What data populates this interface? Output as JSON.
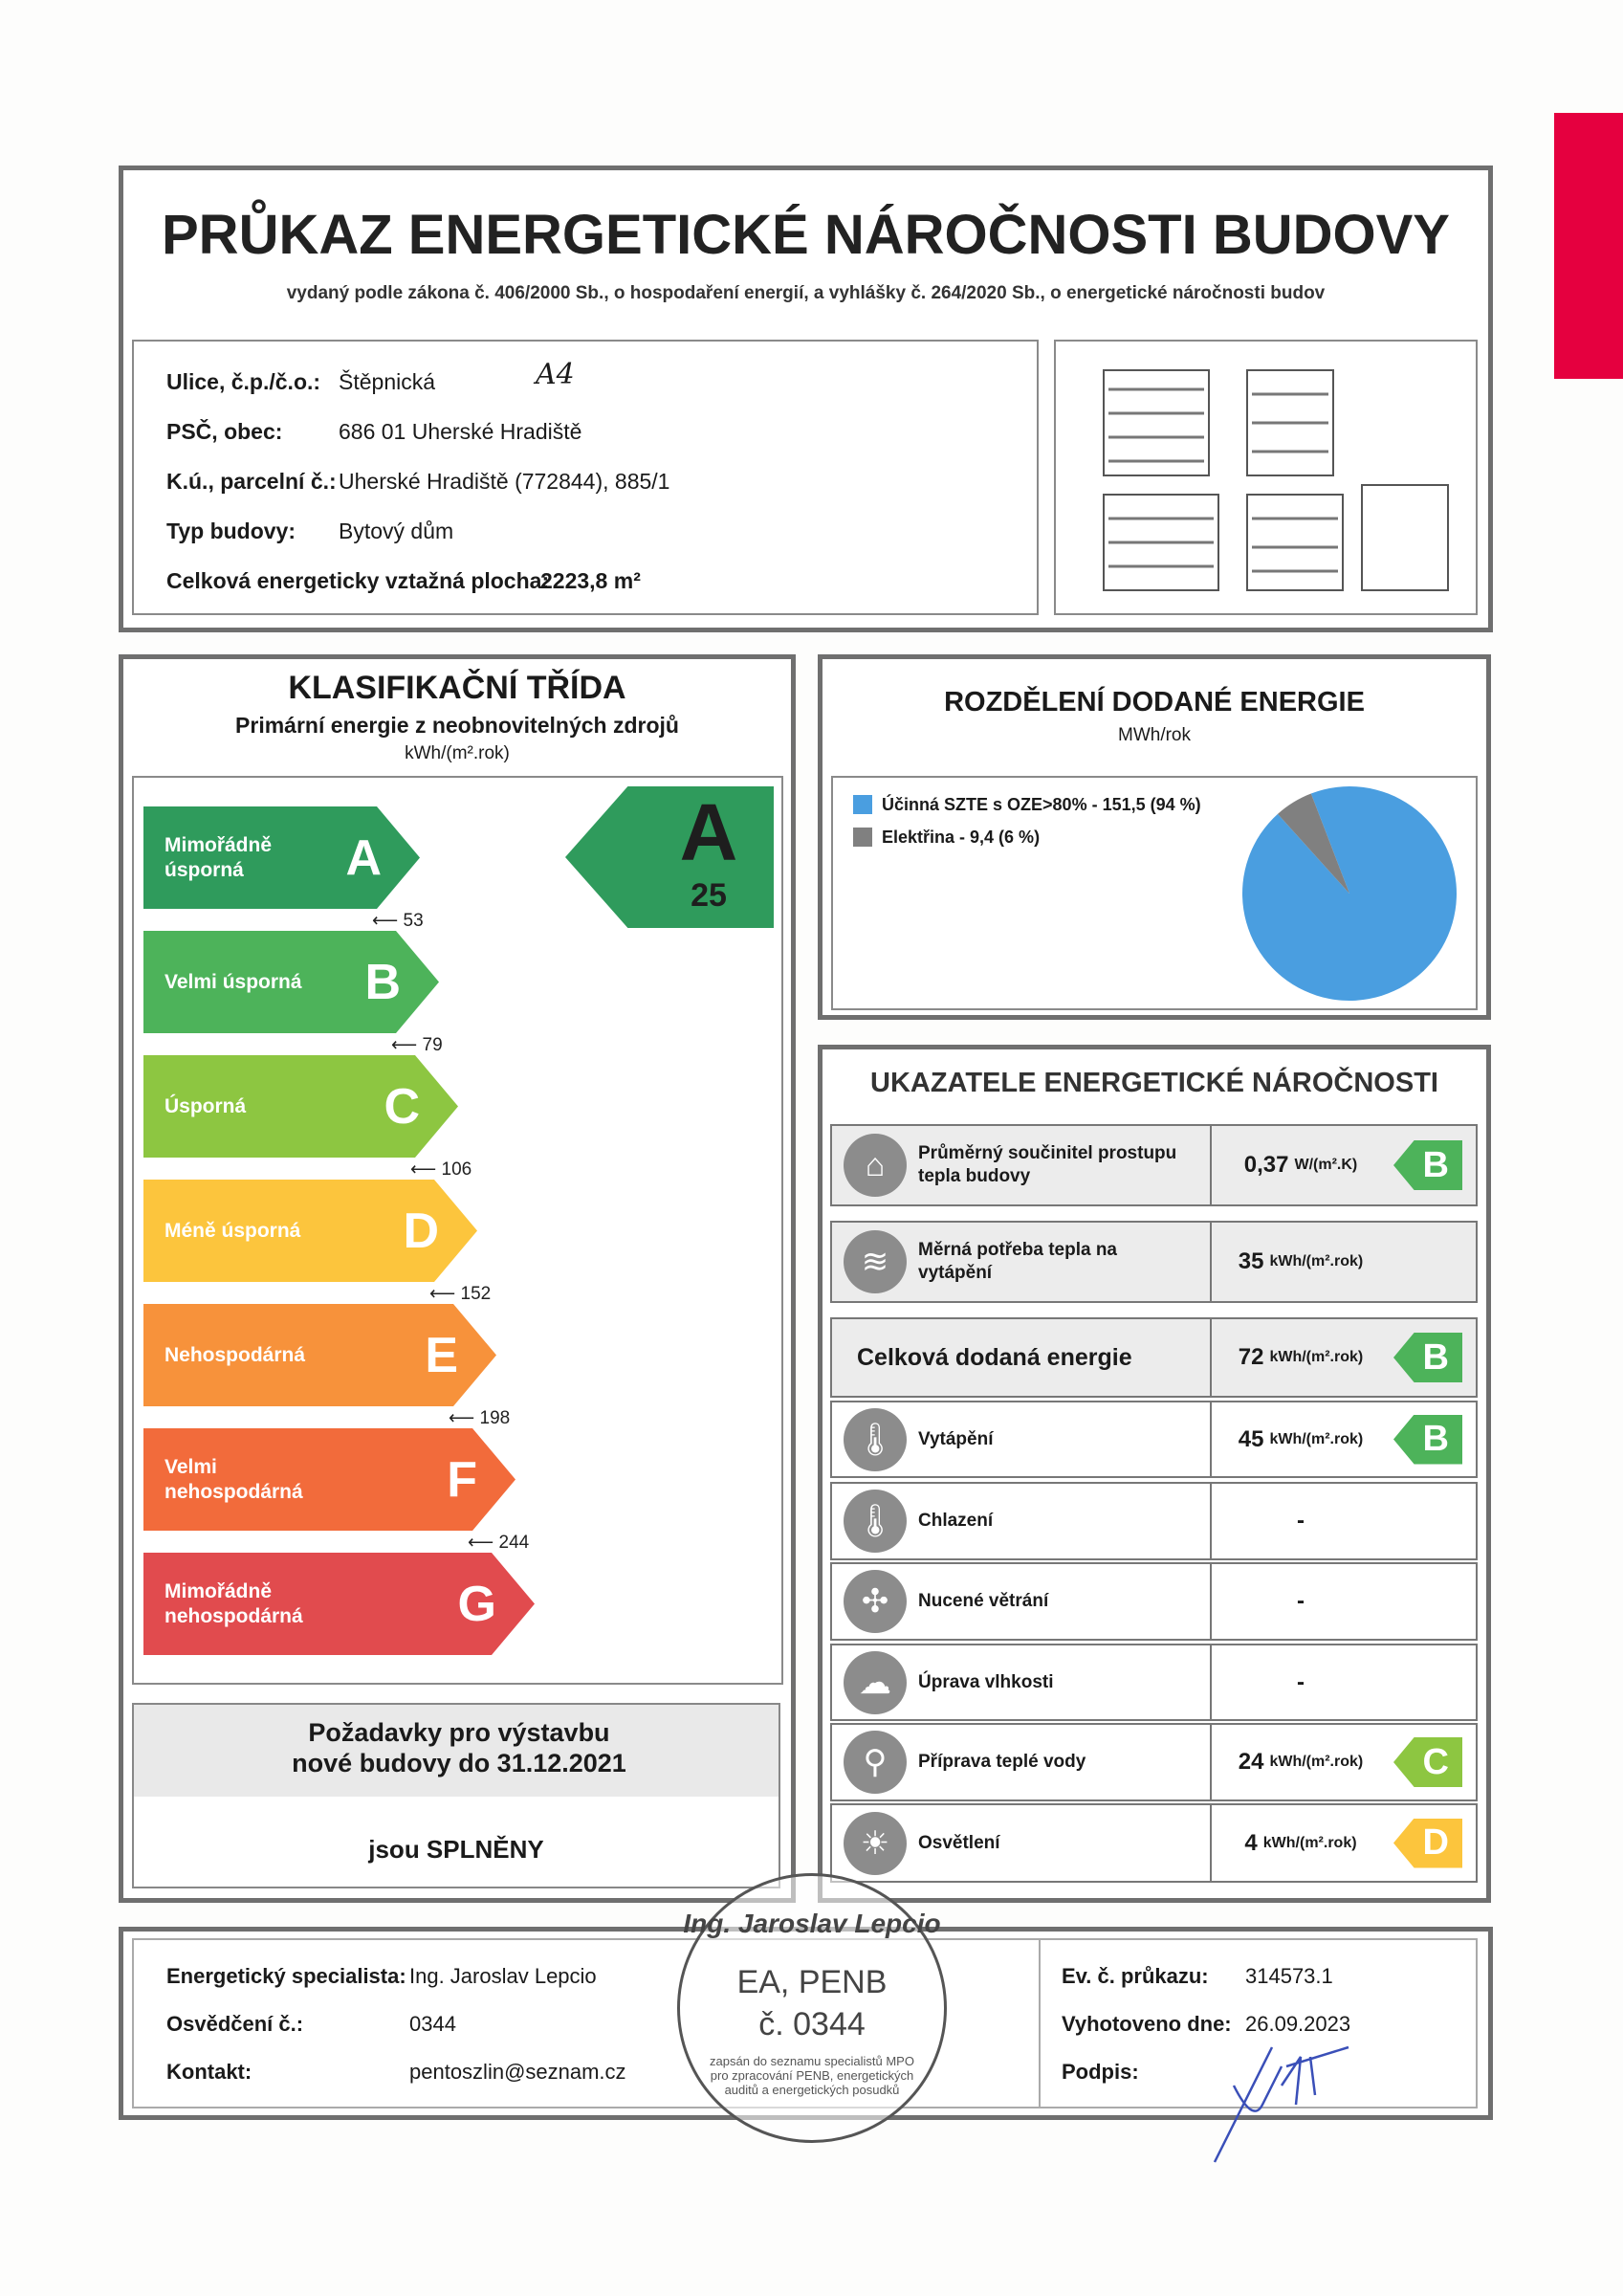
{
  "header": {
    "title": "PRŮKAZ ENERGETICKÉ NÁROČNOSTI BUDOVY",
    "subtitle": "vydaný podle zákona č. 406/2000 Sb., o hospodaření energií, a vyhlášky č. 264/2020 Sb., o energetické náročnosti budov"
  },
  "building": {
    "street_label": "Ulice, č.p./č.o.:",
    "street": "Štěpnická",
    "handwritten_note": "A4",
    "zip_label": "PSČ, obec:",
    "zip": "686 01 Uherské Hradiště",
    "cadastre_label": "K.ú., parcelní č.:",
    "cadastre": "Uherské Hradiště (772844), 885/1",
    "type_label": "Typ budovy:",
    "type": "Bytový dům",
    "area_label": "Celková energeticky vztažná plocha:",
    "area": "2223,8 m²"
  },
  "classification": {
    "title": "KLASIFIKAČNÍ TŘÍDA",
    "subtitle": "Primární energie z neobnovitelných zdrojů",
    "unit": "kWh/(m².rok)",
    "classes": [
      {
        "label": "Mimořádně úsporná",
        "letter": "A",
        "color": "#2f9b5c",
        "threshold": "53"
      },
      {
        "label": "Velmi úsporná",
        "letter": "B",
        "color": "#4db35a",
        "threshold": "79"
      },
      {
        "label": "Úsporná",
        "letter": "C",
        "color": "#8dc641",
        "threshold": "106"
      },
      {
        "label": "Méně úsporná",
        "letter": "D",
        "color": "#fcc53d",
        "threshold": "152"
      },
      {
        "label": "Nehospodárná",
        "letter": "E",
        "color": "#f7923b",
        "threshold": "198"
      },
      {
        "label": "Velmi nehospodárná",
        "letter": "F",
        "color": "#f26b3b",
        "threshold": "244"
      },
      {
        "label": "Mimořádně nehospodárná",
        "letter": "G",
        "color": "#e14b4e"
      }
    ],
    "result": {
      "letter": "A",
      "value": "25",
      "color": "#2f9b5c"
    },
    "requirements": "Požadavky pro výstavbu nové budovy do 31.12.2021",
    "requirements_status": "jsou SPLNĚNY"
  },
  "distribution": {
    "title": "ROZDĚLENÍ DODANÉ ENERGIE",
    "unit": "MWh/rok",
    "chart_data": {
      "type": "pie",
      "slices": [
        {
          "name": "Účinná SZTE s OZE>80% - 151,5 (94 %)",
          "value": 151.5,
          "percent": 94,
          "color": "#4a9ee0"
        },
        {
          "name": "Elektřina - 9,4 (6 %)",
          "value": 9.4,
          "percent": 6,
          "color": "#808080"
        }
      ]
    }
  },
  "indicators": {
    "title": "UKAZATELE ENERGETICKÉ NÁROČNOSTI",
    "rows": [
      {
        "name": "Průměrný součinitel prostupu tepla budovy",
        "value": "0,37",
        "unit": "W/(m².K)",
        "class": "B",
        "color": "#4db35a",
        "icon": "house-icon"
      },
      {
        "name": "Měrná potřeba tepla na vytápění",
        "value": "35",
        "unit": "kWh/(m².rok)",
        "icon": "heat-thermometer-icon"
      },
      {
        "name": "Celková dodaná energie",
        "value": "72",
        "unit": "kWh/(m².rok)",
        "class": "B",
        "color": "#4db35a"
      },
      {
        "name": "Vytápění",
        "value": "45",
        "unit": "kWh/(m².rok)",
        "class": "B",
        "color": "#4db35a",
        "icon": "thermometer-plus-icon"
      },
      {
        "name": "Chlazení",
        "value": "-",
        "icon": "thermometer-minus-icon"
      },
      {
        "name": "Nucené větrání",
        "value": "-",
        "icon": "fan-icon"
      },
      {
        "name": "Úprava vlhkosti",
        "value": "-",
        "icon": "cloud-drop-icon"
      },
      {
        "name": "Příprava teplé vody",
        "value": "24",
        "unit": "kWh/(m².rok)",
        "class": "C",
        "color": "#8dc641",
        "icon": "faucet-icon"
      },
      {
        "name": "Osvětlení",
        "value": "4",
        "unit": "kWh/(m².rok)",
        "class": "D",
        "color": "#fcc53d",
        "icon": "bulb-icon"
      }
    ]
  },
  "footer": {
    "specialist_label": "Energetický specialista:",
    "specialist": "Ing. Jaroslav Lepcio",
    "cert_label": "Osvědčení č.:",
    "cert": "0344",
    "contact_label": "Kontakt:",
    "contact": "pentoszlin@seznam.cz",
    "ev_label": "Ev. č. průkazu:",
    "ev": "314573.1",
    "date_label": "Vyhotoveno dne:",
    "date": "26.09.2023",
    "sign_label": "Podpis:",
    "stamp": {
      "top": "Ing. Jaroslav Lepcio",
      "line1": "EA, PENB",
      "line2": "č. 0344",
      "bottom": "zapsán do seznamu specialistů MPO pro zpracování PENB, energetických auditů a energetických posudků"
    }
  }
}
